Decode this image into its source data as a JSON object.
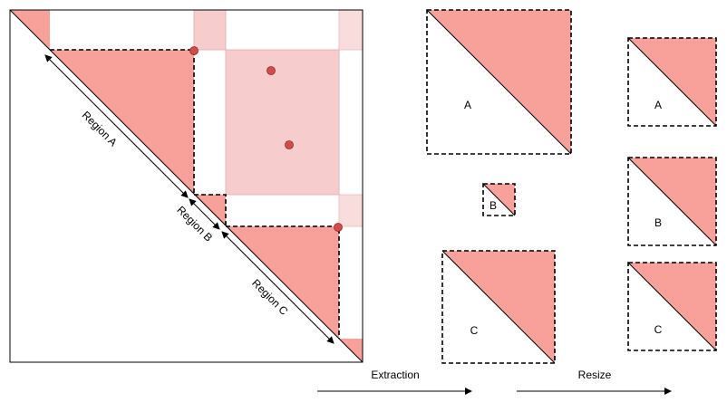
{
  "colors": {
    "region_fill": "#f8a09a",
    "region_light": "#f6cccc",
    "region_lighter": "#f9dcdc",
    "point": "#d64a4a",
    "line": "#000000",
    "background": "#ffffff"
  },
  "matrix": {
    "region_a_label": "Region A",
    "region_b_label": "Region B",
    "region_c_label": "Region C"
  },
  "extracted": {
    "a_label": "A",
    "b_label": "B",
    "c_label": "C"
  },
  "resized": {
    "a_label": "A",
    "b_label": "B",
    "c_label": "C"
  },
  "steps": {
    "extraction_label": "Extraction",
    "resize_label": "Resize"
  }
}
